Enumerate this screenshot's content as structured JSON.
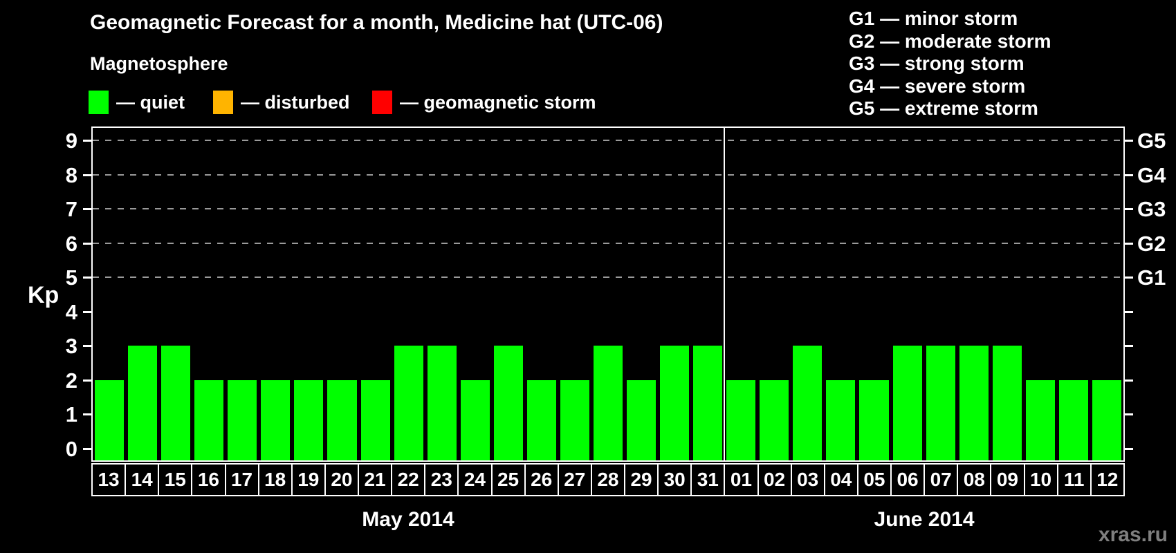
{
  "legend": {
    "title": "Magnetosphere",
    "items": [
      {
        "key": "quiet",
        "color": "#00ff00",
        "label": "— quiet"
      },
      {
        "key": "disturbed",
        "color": "#ffb400",
        "label": "— disturbed"
      },
      {
        "key": "storm",
        "color": "#ff0000",
        "label": "— geomagnetic storm"
      }
    ]
  },
  "g_scale": [
    "G1 — minor storm",
    "G2 — moderate storm",
    "G3 — strong storm",
    "G4 — severe storm",
    "G5 — extreme storm"
  ],
  "watermark": "xras.ru",
  "chart_data": {
    "type": "bar",
    "title": "Geomagnetic Forecast for a month, Medicine hat (UTC-06)",
    "xlabel": "",
    "ylabel": "Kp",
    "ylim": [
      0,
      9
    ],
    "yticks": [
      0,
      1,
      2,
      3,
      4,
      5,
      6,
      7,
      8,
      9
    ],
    "gridlines_at_kp": [
      5,
      6,
      7,
      8,
      9
    ],
    "grid": "dashed",
    "legend_position": "top-left",
    "background": "#000000",
    "bar_color": "#00ff00",
    "bar_status_all": "quiet",
    "right_axis": [
      {
        "kp": 5,
        "label": "G1"
      },
      {
        "kp": 6,
        "label": "G2"
      },
      {
        "kp": 7,
        "label": "G3"
      },
      {
        "kp": 8,
        "label": "G4"
      },
      {
        "kp": 9,
        "label": "G5"
      }
    ],
    "groups": [
      {
        "label": "May 2014",
        "days": [
          "13",
          "14",
          "15",
          "16",
          "17",
          "18",
          "19",
          "20",
          "21",
          "22",
          "23",
          "24",
          "25",
          "26",
          "27",
          "28",
          "29",
          "30",
          "31"
        ],
        "values": [
          2,
          3,
          3,
          2,
          2,
          2,
          2,
          2,
          2,
          3,
          3,
          2,
          3,
          2,
          2,
          3,
          2,
          3,
          3
        ]
      },
      {
        "label": "June 2014",
        "days": [
          "01",
          "02",
          "03",
          "04",
          "05",
          "06",
          "07",
          "08",
          "09",
          "10",
          "11",
          "12"
        ],
        "values": [
          2,
          2,
          3,
          2,
          2,
          3,
          3,
          3,
          3,
          2,
          2,
          2
        ]
      }
    ]
  }
}
